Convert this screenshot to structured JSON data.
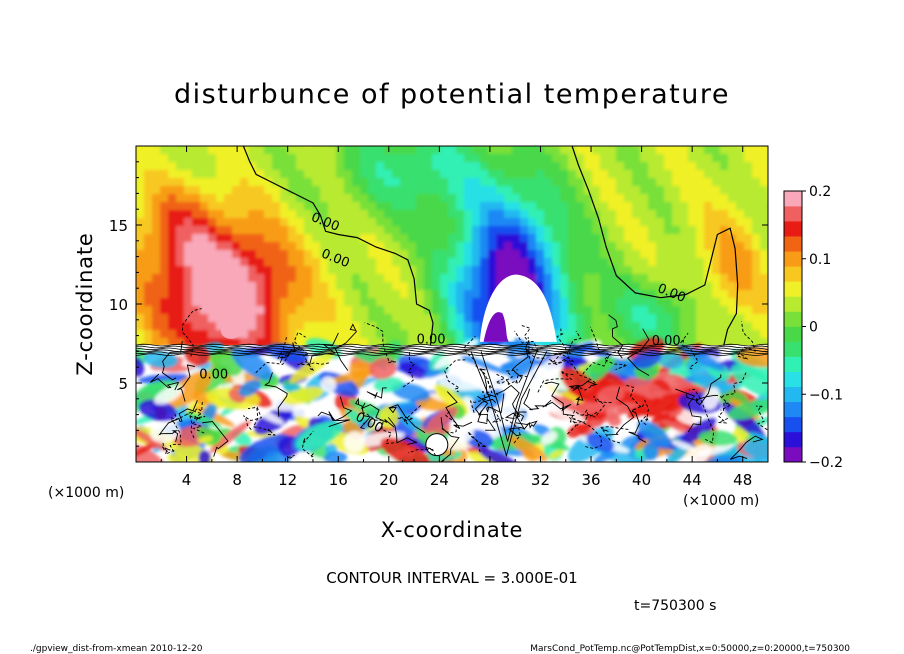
{
  "chart_data": {
    "type": "heatmap",
    "title": "disturbunce of potential temperature",
    "xlabel": "X-coordinate",
    "ylabel": "Z-coordinate",
    "x_unit_left": "(×1000 m)",
    "x_unit_right": "(×1000 m)",
    "xlim": [
      0,
      50
    ],
    "ylim": [
      0,
      20
    ],
    "x_ticks": [
      4,
      8,
      12,
      16,
      20,
      24,
      28,
      32,
      36,
      40,
      44,
      48
    ],
    "y_ticks": [
      5,
      10,
      15
    ],
    "colorbar": {
      "min": -0.2,
      "max": 0.2,
      "tick_labels": [
        "0.2",
        "0.1",
        "0",
        "−0.1",
        "−0.2"
      ],
      "tick_values": [
        0.2,
        0.1,
        0.0,
        -0.1,
        -0.2
      ],
      "colors": [
        "#7a0bbf",
        "#2a10d8",
        "#1850f0",
        "#1e88f5",
        "#24b8f0",
        "#28e0e6",
        "#30f0b4",
        "#38e070",
        "#48d848",
        "#78e038",
        "#b8ea30",
        "#f0f028",
        "#f8c820",
        "#f89c18",
        "#f06414",
        "#e81c14",
        "#f06060",
        "#f8a8b8"
      ]
    },
    "contour_interval_text": "CONTOUR INTERVAL = 3.000E-01",
    "contour_labels": [
      "0.00",
      "0.00",
      "0.00",
      "0.00",
      "0.00",
      "0.00",
      "0.00"
    ],
    "time_text": "t=750300 s",
    "footer_left": "./gpview_dist-from-xmean  2010-12-20",
    "footer_right": "MarsCond_PotTemp.nc@PotTempDist,x=0:50000,z=0:20000,t=750300",
    "features": [
      {
        "name": "warm-anomaly-left",
        "x": 7,
        "z": 11,
        "value": 0.2
      },
      {
        "name": "cold-anomaly-center",
        "x": 29,
        "z": 11,
        "value": -0.2
      },
      {
        "name": "turbulent-boundary-layer",
        "x_range": [
          0,
          50
        ],
        "z_range": [
          0,
          7.4
        ]
      }
    ]
  },
  "colors": {
    "background": "#ffffff",
    "axis": "#000000",
    "contour": "#000000"
  }
}
